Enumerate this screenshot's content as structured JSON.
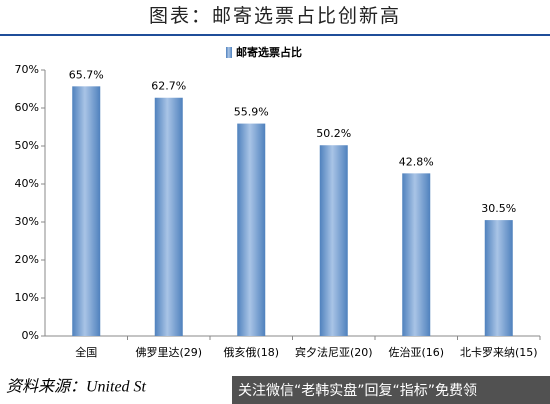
{
  "chart_data": {
    "type": "bar",
    "title": "图表：邮寄选票占比创新高",
    "legend": "邮寄选票占比",
    "categories": [
      "全国",
      "佛罗里达(29)",
      "俄亥俄(18)",
      "宾夕法尼亚(20)",
      "佐治亚(16)",
      "北卡罗来纳(15)"
    ],
    "values": [
      65.7,
      62.7,
      55.9,
      50.2,
      42.8,
      30.5
    ],
    "value_labels": [
      "65.7%",
      "62.7%",
      "55.9%",
      "50.2%",
      "42.8%",
      "30.5%"
    ],
    "color": "#4f81bd",
    "ylim": [
      0,
      70
    ],
    "yticks": [
      {
        "value": 0,
        "label": "0%"
      },
      {
        "value": 10,
        "label": "10%"
      },
      {
        "value": 20,
        "label": "20%"
      },
      {
        "value": 30,
        "label": "30%"
      },
      {
        "value": 40,
        "label": "40%"
      },
      {
        "value": 50,
        "label": "50%"
      },
      {
        "value": 60,
        "label": "60%"
      },
      {
        "value": 70,
        "label": "70%"
      }
    ],
    "source": "资料来源：United St",
    "watermark": "关注微信“老韩实盘”回复“指标”免费领"
  }
}
